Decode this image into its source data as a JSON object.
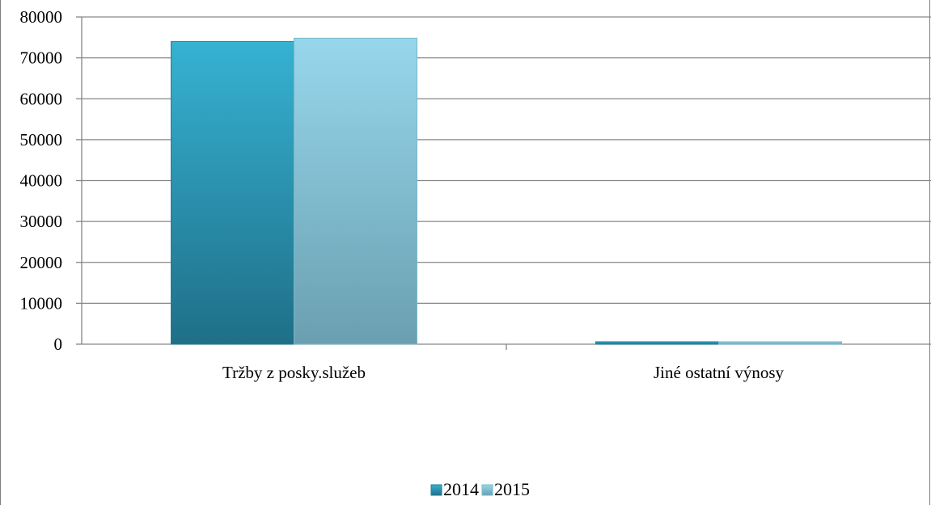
{
  "chart_data": {
    "type": "bar",
    "title": "",
    "xlabel": "",
    "ylabel": "",
    "categories": [
      "Tržby z posky.služeb",
      "Jiné ostatní výnosy"
    ],
    "series": [
      {
        "name": "2014",
        "values": [
          74000,
          400
        ],
        "color": "#2a9ab8"
      },
      {
        "name": "2015",
        "values": [
          74800,
          450
        ],
        "color": "#8ccde0"
      }
    ],
    "ylim": [
      0,
      80000
    ],
    "yticks": [
      "0",
      "10000",
      "20000",
      "30000",
      "40000",
      "50000",
      "60000",
      "70000",
      "80000"
    ],
    "grid": true,
    "legend_position": "bottom"
  }
}
